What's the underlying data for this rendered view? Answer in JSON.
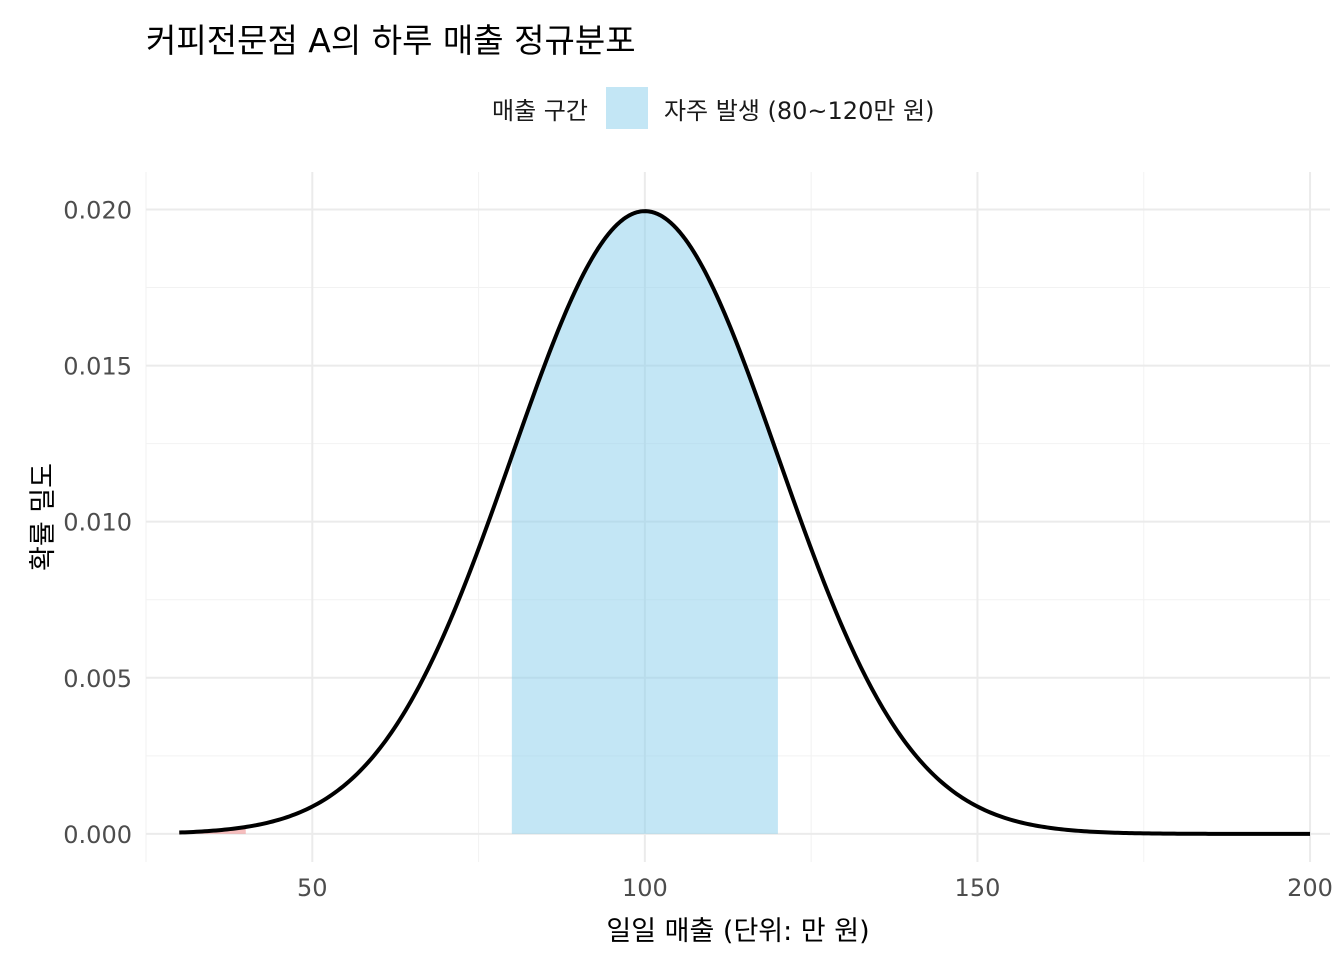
{
  "chart_data": {
    "type": "area",
    "title": "커피전문점 A의 하루 매출 정규분포",
    "xlabel": "일일 매출 (단위: 만 원)",
    "ylabel": "확률 밀도",
    "xlim": [
      25,
      203
    ],
    "ylim": [
      -0.0009,
      0.0212
    ],
    "x_ticks": [
      50,
      100,
      150,
      200
    ],
    "x_tick_labels": [
      "50",
      "100",
      "150",
      "200"
    ],
    "y_ticks": [
      0,
      0.005,
      0.01,
      0.015,
      0.02
    ],
    "y_tick_labels": [
      "0.000",
      "0.005",
      "0.010",
      "0.015",
      "0.020"
    ],
    "x_minor_ticks": [
      25,
      75,
      125,
      175
    ],
    "y_minor_ticks": [
      0.0025,
      0.0075,
      0.0125,
      0.0175
    ],
    "distribution": {
      "family": "normal",
      "mean": 100,
      "sd": 20,
      "x_range": [
        30,
        200
      ]
    },
    "shaded_regions": [
      {
        "name": "자주 발생 (80~120만 원)",
        "from": 80,
        "to": 120,
        "color": "#87ceeb",
        "opacity": 0.5
      },
      {
        "name": "",
        "from": 30,
        "to": 40,
        "color": "#f08080",
        "opacity": 0.5
      }
    ],
    "line_color": "#000000",
    "grid": true,
    "legend": {
      "position": "top",
      "title": "매출 구간",
      "entries": [
        {
          "label": "자주 발생 (80~120만 원)",
          "color": "#87ceeb"
        }
      ]
    }
  }
}
